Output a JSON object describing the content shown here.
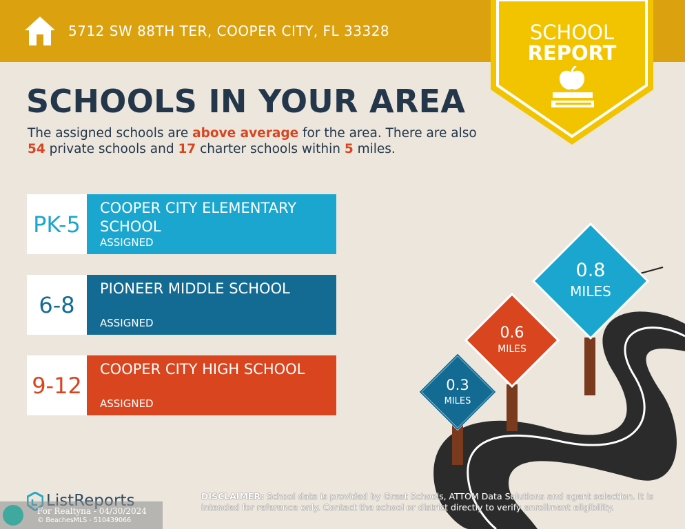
{
  "header": {
    "address": "5712 SW 88TH TER, COOPER CITY, FL 33328",
    "badge_line1": "SCHOOL",
    "badge_line2": "REPORT"
  },
  "main": {
    "title": "SCHOOLS IN YOUR AREA",
    "intro": {
      "p1": "The assigned schools are ",
      "rating": "above average",
      "p2": " for the area. There are also ",
      "private_count": "54",
      "p3": " private schools and ",
      "charter_count": "17",
      "p4": " charter schools within ",
      "radius": "5",
      "p5": " miles."
    },
    "schools": [
      {
        "grades": "PK-5",
        "name": "COOPER CITY ELEMENTARY SCHOOL",
        "status": "ASSIGNED",
        "color": "#1aa6cf"
      },
      {
        "grades": "6-8",
        "name": "PIONEER MIDDLE SCHOOL",
        "status": "ASSIGNED",
        "color": "#136b93"
      },
      {
        "grades": "9-12",
        "name": "COOPER CITY HIGH SCHOOL",
        "status": "ASSIGNED",
        "color": "#d8451f"
      }
    ]
  },
  "signs": [
    {
      "value": "0.3",
      "unit": "MILES",
      "color": "#136b93"
    },
    {
      "value": "0.6",
      "unit": "MILES",
      "color": "#d8451f"
    },
    {
      "value": "0.8",
      "unit": "MILES",
      "color": "#1aa6cf"
    }
  ],
  "footer": {
    "logo": "ListReports",
    "disclaimer_label": "DISCLAIMER:",
    "disclaimer_text": " School data is provided by Great Schools, ATTOM Data Solutions and agent selection. It is intended for reference only. Contact the school or district directly to verify enrollment eligibility.",
    "watermark_line1": "For Realtyna - 04/30/2024",
    "watermark_line2": "© BeachesMLS - 510439066"
  },
  "colors": {
    "header_bg": "#dba10f",
    "badge": "#f2c400",
    "accent": "#d8451f",
    "navy": "#23364a"
  },
  "icons": [
    "home-icon",
    "apple-on-book-icon",
    "listreports-logo-icon"
  ]
}
